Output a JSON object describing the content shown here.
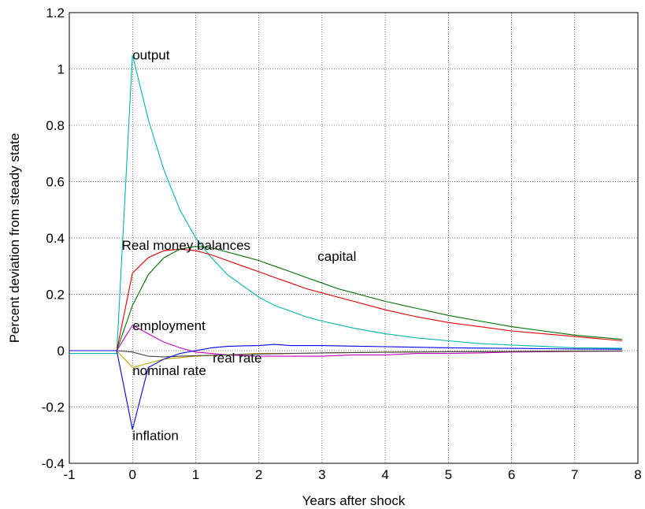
{
  "chart_data": {
    "type": "line",
    "title": "",
    "xlabel": "Years after shock",
    "ylabel": "Percent deviation from steady state",
    "xlim": [
      -1,
      8
    ],
    "ylim": [
      -0.4,
      1.2
    ],
    "xticks": [
      -1,
      0,
      1,
      2,
      3,
      4,
      5,
      6,
      7,
      8
    ],
    "yticks": [
      -0.4,
      -0.2,
      0,
      0.2,
      0.4,
      0.6,
      0.8,
      1,
      1.2
    ],
    "xtick_labels": [
      "-1",
      "0",
      "1",
      "2",
      "3",
      "4",
      "5",
      "6",
      "7",
      "8"
    ],
    "ytick_labels": [
      "-0.4",
      "-0.2",
      "0",
      "0.2",
      "0.4",
      "0.6",
      "0.8",
      "1",
      "1.2"
    ],
    "grid": true,
    "legend": "none",
    "series": [
      {
        "color": "#00b4b4",
        "x": [
          -1,
          -0.25,
          0,
          0.25,
          0.5,
          0.75,
          1,
          1.25,
          1.5,
          1.75,
          2,
          2.25,
          2.5,
          2.75,
          3,
          3.5,
          4,
          4.5,
          5,
          5.5,
          6,
          6.5,
          7,
          7.75
        ],
        "y": [
          -0.01,
          -0.01,
          1.05,
          0.82,
          0.64,
          0.5,
          0.4,
          0.33,
          0.27,
          0.23,
          0.19,
          0.16,
          0.14,
          0.12,
          0.105,
          0.08,
          0.06,
          0.045,
          0.035,
          0.025,
          0.02,
          0.015,
          0.01,
          0.008
        ]
      },
      {
        "color": "#e00000",
        "x": [
          -1,
          -0.25,
          0,
          0.25,
          0.5,
          0.75,
          1,
          1.25,
          1.5,
          1.75,
          2,
          2.25,
          2.5,
          2.75,
          3,
          3.25,
          3.5,
          3.75,
          4,
          4.5,
          5,
          5.5,
          6,
          6.5,
          7,
          7.75
        ],
        "y": [
          0,
          0,
          0.275,
          0.33,
          0.355,
          0.36,
          0.355,
          0.34,
          0.32,
          0.3,
          0.28,
          0.26,
          0.24,
          0.22,
          0.205,
          0.19,
          0.175,
          0.16,
          0.145,
          0.12,
          0.1,
          0.085,
          0.07,
          0.06,
          0.05,
          0.035
        ]
      },
      {
        "color": "#007000",
        "x": [
          -1,
          -0.25,
          0,
          0.25,
          0.5,
          0.75,
          1,
          1.25,
          1.5,
          1.75,
          2,
          2.25,
          2.5,
          2.75,
          3,
          3.25,
          3.5,
          3.75,
          4,
          4.5,
          5,
          5.5,
          6,
          6.5,
          7,
          7.75
        ],
        "y": [
          0,
          0,
          0.16,
          0.27,
          0.33,
          0.36,
          0.37,
          0.365,
          0.35,
          0.335,
          0.32,
          0.3,
          0.28,
          0.26,
          0.24,
          0.22,
          0.205,
          0.19,
          0.175,
          0.15,
          0.125,
          0.105,
          0.085,
          0.07,
          0.055,
          0.04
        ]
      },
      {
        "color": "#c000c0",
        "x": [
          -1,
          -0.25,
          0,
          0.25,
          0.5,
          0.75,
          1,
          1.25,
          1.5,
          2,
          2.5,
          3,
          3.5,
          4,
          4.5,
          5,
          5.5,
          6,
          7,
          7.75
        ],
        "y": [
          0,
          0,
          0.09,
          0.06,
          0.03,
          0.01,
          -0.005,
          -0.01,
          -0.015,
          -0.02,
          -0.02,
          -0.02,
          -0.015,
          -0.015,
          -0.01,
          -0.01,
          -0.008,
          -0.005,
          -0.003,
          -0.002
        ]
      },
      {
        "color": "#c0a000",
        "x": [
          -1,
          -0.25,
          0,
          0.25,
          0.5,
          0.75,
          1,
          1.5,
          2,
          2.5,
          3,
          4,
          5,
          6,
          7,
          7.75
        ],
        "y": [
          0,
          0,
          -0.06,
          -0.045,
          -0.03,
          -0.025,
          -0.02,
          -0.015,
          -0.01,
          -0.01,
          -0.008,
          -0.005,
          -0.004,
          -0.003,
          -0.002,
          -0.001
        ]
      },
      {
        "color": "#404040",
        "x": [
          -1,
          -0.25,
          0,
          0.25,
          0.5,
          0.75,
          1,
          1.5,
          2,
          2.5,
          3,
          4,
          5,
          6,
          7,
          7.75
        ],
        "y": [
          0,
          0,
          -0.005,
          -0.02,
          -0.022,
          -0.02,
          -0.018,
          -0.015,
          -0.012,
          -0.01,
          -0.008,
          -0.006,
          -0.004,
          -0.003,
          -0.002,
          -0.001
        ]
      },
      {
        "color": "#0000e0",
        "x": [
          -1,
          -0.25,
          0,
          0.25,
          0.5,
          0.75,
          1,
          1.25,
          1.5,
          1.75,
          2,
          2.25,
          2.5,
          3,
          3.5,
          4,
          4.5,
          5,
          5.5,
          6,
          6.5,
          7,
          7.75
        ],
        "y": [
          0,
          0,
          -0.28,
          -0.06,
          -0.03,
          -0.01,
          0.0,
          0.01,
          0.015,
          0.017,
          0.018,
          0.022,
          0.018,
          0.018,
          0.016,
          0.014,
          0.012,
          0.01,
          0.009,
          0.008,
          0.007,
          0.006,
          0.005
        ]
      }
    ],
    "annotations": [
      {
        "text": "output",
        "x": 0.0,
        "y": 1.05
      },
      {
        "text": "Real money balances",
        "x": -0.17,
        "y": 0.375
      },
      {
        "text": "capital",
        "x": 2.93,
        "y": 0.335
      },
      {
        "text": "employment",
        "x": 0.0,
        "y": 0.09
      },
      {
        "text": "real rate",
        "x": 1.27,
        "y": -0.025
      },
      {
        "text": "nominal rate",
        "x": 0.0,
        "y": -0.07
      },
      {
        "text": "inflation",
        "x": 0.0,
        "y": -0.3
      }
    ]
  }
}
